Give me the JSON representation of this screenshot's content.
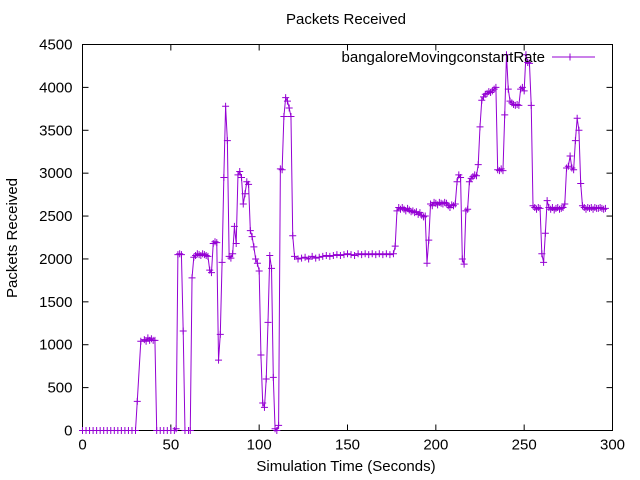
{
  "chart_data": {
    "type": "line",
    "title": "Packets Received",
    "xlabel": "Simulation Time (Seconds)",
    "ylabel": "Packets Received",
    "xlim": [
      0,
      300
    ],
    "ylim": [
      0,
      4500
    ],
    "xticks": [
      0,
      50,
      100,
      150,
      200,
      250,
      300
    ],
    "yticks": [
      0,
      500,
      1000,
      1500,
      2000,
      2500,
      3000,
      3500,
      4000,
      4500
    ],
    "grid": false,
    "legend_position": "top-right",
    "series": [
      {
        "name": "bangaloreMovingconstantRate",
        "color": "#9400d3",
        "marker": "plus",
        "points": [
          [
            0,
            0
          ],
          [
            2,
            0
          ],
          [
            4,
            0
          ],
          [
            6,
            0
          ],
          [
            8,
            0
          ],
          [
            10,
            0
          ],
          [
            12,
            0
          ],
          [
            14,
            0
          ],
          [
            16,
            0
          ],
          [
            18,
            0
          ],
          [
            20,
            0
          ],
          [
            22,
            0
          ],
          [
            24,
            0
          ],
          [
            26,
            0
          ],
          [
            28,
            0
          ],
          [
            30,
            0
          ],
          [
            31,
            340
          ],
          [
            33,
            1040
          ],
          [
            35,
            1060
          ],
          [
            36,
            1040
          ],
          [
            37,
            1080
          ],
          [
            38,
            1050
          ],
          [
            39,
            1070
          ],
          [
            40,
            1050
          ],
          [
            41,
            1050
          ],
          [
            42,
            0
          ],
          [
            44,
            0
          ],
          [
            46,
            0
          ],
          [
            48,
            0
          ],
          [
            50,
            0
          ],
          [
            52,
            0
          ],
          [
            53,
            20
          ],
          [
            54,
            2050
          ],
          [
            55,
            2060
          ],
          [
            56,
            2050
          ],
          [
            57,
            1160
          ],
          [
            58,
            0
          ],
          [
            60,
            0
          ],
          [
            61,
            0
          ],
          [
            62,
            1780
          ],
          [
            63,
            2020
          ],
          [
            64,
            2040
          ],
          [
            65,
            2060
          ],
          [
            66,
            2050
          ],
          [
            67,
            2040
          ],
          [
            68,
            2060
          ],
          [
            69,
            2050
          ],
          [
            70,
            2040
          ],
          [
            71,
            2030
          ],
          [
            72,
            1870
          ],
          [
            73,
            1840
          ],
          [
            74,
            2180
          ],
          [
            75,
            2200
          ],
          [
            76,
            2190
          ],
          [
            77,
            820
          ],
          [
            78,
            1120
          ],
          [
            79,
            1960
          ],
          [
            80,
            2950
          ],
          [
            81,
            3780
          ],
          [
            82,
            3380
          ],
          [
            83,
            2030
          ],
          [
            84,
            2010
          ],
          [
            85,
            2060
          ],
          [
            86,
            2380
          ],
          [
            87,
            2180
          ],
          [
            88,
            2980
          ],
          [
            89,
            3020
          ],
          [
            90,
            2950
          ],
          [
            91,
            2640
          ],
          [
            92,
            2760
          ],
          [
            93,
            2900
          ],
          [
            94,
            2870
          ],
          [
            95,
            2330
          ],
          [
            96,
            2260
          ],
          [
            97,
            2140
          ],
          [
            98,
            2000
          ],
          [
            99,
            1950
          ],
          [
            100,
            1860
          ],
          [
            101,
            880
          ],
          [
            102,
            320
          ],
          [
            103,
            270
          ],
          [
            104,
            600
          ],
          [
            105,
            1260
          ],
          [
            106,
            2040
          ],
          [
            107,
            1890
          ],
          [
            108,
            620
          ],
          [
            109,
            20
          ],
          [
            110,
            0
          ],
          [
            111,
            60
          ],
          [
            112,
            3050
          ],
          [
            113,
            3040
          ],
          [
            114,
            3660
          ],
          [
            115,
            3880
          ],
          [
            116,
            3840
          ],
          [
            117,
            3760
          ],
          [
            118,
            3660
          ],
          [
            119,
            2270
          ],
          [
            120,
            2030
          ],
          [
            122,
            2000
          ],
          [
            124,
            2010
          ],
          [
            126,
            2020
          ],
          [
            128,
            2000
          ],
          [
            130,
            2030
          ],
          [
            132,
            2010
          ],
          [
            134,
            2020
          ],
          [
            136,
            2030
          ],
          [
            138,
            2040
          ],
          [
            140,
            2030
          ],
          [
            142,
            2040
          ],
          [
            144,
            2050
          ],
          [
            146,
            2040
          ],
          [
            148,
            2050
          ],
          [
            150,
            2060
          ],
          [
            152,
            2050
          ],
          [
            154,
            2040
          ],
          [
            156,
            2060
          ],
          [
            158,
            2050
          ],
          [
            160,
            2060
          ],
          [
            162,
            2050
          ],
          [
            164,
            2060
          ],
          [
            166,
            2050
          ],
          [
            168,
            2060
          ],
          [
            170,
            2050
          ],
          [
            172,
            2060
          ],
          [
            174,
            2050
          ],
          [
            176,
            2060
          ],
          [
            177,
            2150
          ],
          [
            178,
            2560
          ],
          [
            179,
            2600
          ],
          [
            180,
            2580
          ],
          [
            181,
            2600
          ],
          [
            182,
            2580
          ],
          [
            183,
            2560
          ],
          [
            184,
            2590
          ],
          [
            185,
            2570
          ],
          [
            186,
            2550
          ],
          [
            187,
            2560
          ],
          [
            188,
            2540
          ],
          [
            189,
            2550
          ],
          [
            190,
            2520
          ],
          [
            191,
            2540
          ],
          [
            192,
            2510
          ],
          [
            193,
            2490
          ],
          [
            194,
            2500
          ],
          [
            195,
            1950
          ],
          [
            196,
            2220
          ],
          [
            197,
            2640
          ],
          [
            198,
            2620
          ],
          [
            199,
            2660
          ],
          [
            200,
            2650
          ],
          [
            201,
            2630
          ],
          [
            202,
            2660
          ],
          [
            203,
            2650
          ],
          [
            204,
            2640
          ],
          [
            205,
            2660
          ],
          [
            206,
            2650
          ],
          [
            207,
            2620
          ],
          [
            208,
            2600
          ],
          [
            209,
            2630
          ],
          [
            210,
            2620
          ],
          [
            211,
            2640
          ],
          [
            212,
            2900
          ],
          [
            213,
            2980
          ],
          [
            214,
            2950
          ],
          [
            215,
            2000
          ],
          [
            216,
            1940
          ],
          [
            217,
            2560
          ],
          [
            218,
            2580
          ],
          [
            219,
            2900
          ],
          [
            220,
            2940
          ],
          [
            221,
            2960
          ],
          [
            222,
            2980
          ],
          [
            223,
            2970
          ],
          [
            224,
            3100
          ],
          [
            225,
            3540
          ],
          [
            226,
            3850
          ],
          [
            227,
            3890
          ],
          [
            228,
            3920
          ],
          [
            229,
            3930
          ],
          [
            230,
            3950
          ],
          [
            231,
            3940
          ],
          [
            232,
            3960
          ],
          [
            233,
            3980
          ],
          [
            234,
            4000
          ],
          [
            235,
            3040
          ],
          [
            236,
            3030
          ],
          [
            237,
            3050
          ],
          [
            238,
            3030
          ],
          [
            239,
            3680
          ],
          [
            240,
            4380
          ],
          [
            241,
            3980
          ],
          [
            242,
            3840
          ],
          [
            243,
            3820
          ],
          [
            244,
            3800
          ],
          [
            245,
            3790
          ],
          [
            246,
            3800
          ],
          [
            247,
            3790
          ],
          [
            248,
            3980
          ],
          [
            249,
            4000
          ],
          [
            250,
            3960
          ],
          [
            251,
            4380
          ],
          [
            252,
            4290
          ],
          [
            253,
            4280
          ],
          [
            254,
            3790
          ],
          [
            255,
            2620
          ],
          [
            256,
            2600
          ],
          [
            257,
            2580
          ],
          [
            258,
            2600
          ],
          [
            259,
            2590
          ],
          [
            260,
            2060
          ],
          [
            261,
            1960
          ],
          [
            262,
            2300
          ],
          [
            263,
            2680
          ],
          [
            264,
            2600
          ],
          [
            265,
            2580
          ],
          [
            266,
            2600
          ],
          [
            267,
            2570
          ],
          [
            268,
            2590
          ],
          [
            269,
            2600
          ],
          [
            270,
            2580
          ],
          [
            271,
            2590
          ],
          [
            272,
            2600
          ],
          [
            273,
            2640
          ],
          [
            274,
            3060
          ],
          [
            275,
            3080
          ],
          [
            276,
            3200
          ],
          [
            277,
            3060
          ],
          [
            278,
            3040
          ],
          [
            279,
            3380
          ],
          [
            280,
            3640
          ],
          [
            281,
            3500
          ],
          [
            282,
            2880
          ],
          [
            283,
            2620
          ],
          [
            284,
            2600
          ],
          [
            285,
            2580
          ],
          [
            286,
            2600
          ],
          [
            287,
            2590
          ],
          [
            288,
            2600
          ],
          [
            289,
            2580
          ],
          [
            290,
            2600
          ],
          [
            291,
            2590
          ],
          [
            292,
            2590
          ],
          [
            293,
            2600
          ],
          [
            294,
            2590
          ],
          [
            295,
            2580
          ],
          [
            296,
            2590
          ]
        ]
      }
    ]
  }
}
